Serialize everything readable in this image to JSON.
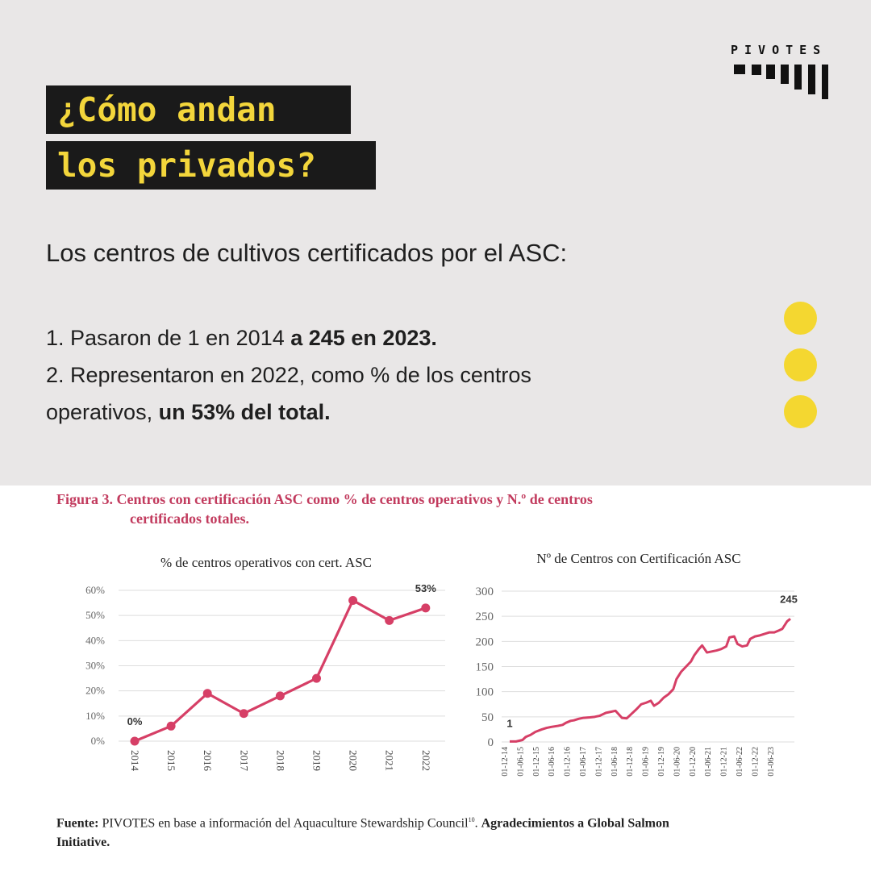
{
  "brand": {
    "name": "PIVOTES"
  },
  "headline": {
    "line1": "¿Cómo andan",
    "line2": "los privados?"
  },
  "intro": "Los centros de cultivos certificados por el ASC:",
  "points": [
    {
      "text": "1. Pasaron de 1 en 2014 ",
      "bold": "a 245 en 2023."
    },
    {
      "text1": "2. Representaron en 2022, como % de los centros",
      "text2": "operativos, ",
      "bold": "un 53% del total."
    }
  ],
  "colors": {
    "accent": "#f4d730",
    "dark": "#1a1a1a",
    "series": "#d63f66",
    "figure_title": "#c23b5e",
    "panel_bg": "#e9e7e7"
  },
  "figure": {
    "title_line1": "Figura 3. Centros con certificación ASC como % de centros operativos y N.º de centros",
    "title_line2": "certificados totales.",
    "source_bold1": "Fuente:",
    "source_text1": " PIVOTES en base a información del Aquaculture Stewardship Council",
    "source_sup": "10",
    "source_text2": ". ",
    "source_bold2": "Agradecimientos a Global Salmon",
    "source_bold3": "Initiative."
  },
  "chart_data": [
    {
      "type": "line",
      "title": "% de centros operativos con cert. ASC",
      "x": [
        "2014",
        "2015",
        "2016",
        "2017",
        "2018",
        "2019",
        "2020",
        "2021",
        "2022"
      ],
      "series": [
        {
          "values": [
            0,
            6,
            19,
            11,
            18,
            25,
            56,
            48,
            53
          ]
        }
      ],
      "yticks": [
        "0%",
        "10%",
        "20%",
        "30%",
        "40%",
        "50%",
        "60%"
      ],
      "ylim": [
        0,
        60
      ],
      "grid": true,
      "annotations": [
        {
          "x": "2014",
          "label": "0%"
        },
        {
          "x": "2022",
          "label": "53%"
        }
      ]
    },
    {
      "type": "line",
      "title": "Nº de Centros con Certificación ASC",
      "x_ticks": [
        "01-12-14",
        "01-06-15",
        "01-12-15",
        "01-06-16",
        "01-12-16",
        "01-06-17",
        "01-12-17",
        "01-06-18",
        "01-12-18",
        "01-06-19",
        "01-12-19",
        "01-06-20",
        "01-12-20",
        "01-06-21",
        "01-12-21",
        "01-06-22",
        "01-12-22",
        "01-06-23"
      ],
      "x_range": [
        0,
        17.5
      ],
      "series": [
        {
          "points": [
            [
              0,
              1
            ],
            [
              0.4,
              1
            ],
            [
              0.8,
              4
            ],
            [
              1,
              10
            ],
            [
              1.3,
              14
            ],
            [
              1.6,
              20
            ],
            [
              2,
              25
            ],
            [
              2.3,
              28
            ],
            [
              2.6,
              30
            ],
            [
              3,
              32
            ],
            [
              3.3,
              34
            ],
            [
              3.5,
              38
            ],
            [
              3.8,
              42
            ],
            [
              4,
              43
            ],
            [
              4.3,
              46
            ],
            [
              4.6,
              48
            ],
            [
              5,
              49
            ],
            [
              5.3,
              50
            ],
            [
              5.6,
              52
            ],
            [
              5.8,
              55
            ],
            [
              6,
              58
            ],
            [
              6.3,
              60
            ],
            [
              6.6,
              62
            ],
            [
              6.8,
              55
            ],
            [
              7,
              48
            ],
            [
              7.3,
              47
            ],
            [
              7.6,
              56
            ],
            [
              7.9,
              65
            ],
            [
              8.2,
              75
            ],
            [
              8.5,
              78
            ],
            [
              8.8,
              82
            ],
            [
              9,
              72
            ],
            [
              9.3,
              78
            ],
            [
              9.6,
              88
            ],
            [
              9.9,
              95
            ],
            [
              10.2,
              105
            ],
            [
              10.4,
              125
            ],
            [
              10.7,
              140
            ],
            [
              11,
              150
            ],
            [
              11.3,
              160
            ],
            [
              11.5,
              172
            ],
            [
              11.8,
              185
            ],
            [
              12,
              192
            ],
            [
              12.3,
              178
            ],
            [
              12.6,
              180
            ],
            [
              12.9,
              182
            ],
            [
              13.2,
              185
            ],
            [
              13.5,
              190
            ],
            [
              13.7,
              208
            ],
            [
              14,
              210
            ],
            [
              14.2,
              195
            ],
            [
              14.5,
              190
            ],
            [
              14.8,
              192
            ],
            [
              15,
              205
            ],
            [
              15.3,
              210
            ],
            [
              15.6,
              212
            ],
            [
              15.9,
              215
            ],
            [
              16.2,
              218
            ],
            [
              16.5,
              218
            ],
            [
              16.8,
              222
            ],
            [
              17,
              225
            ],
            [
              17.3,
              240
            ],
            [
              17.5,
              245
            ]
          ]
        }
      ],
      "yticks": [
        "0",
        "50",
        "100",
        "150",
        "200",
        "250",
        "300"
      ],
      "ylim": [
        0,
        300
      ],
      "grid": true,
      "annotations": [
        {
          "x": 0,
          "label": "1"
        },
        {
          "x": 17.5,
          "label": "245"
        }
      ]
    }
  ]
}
